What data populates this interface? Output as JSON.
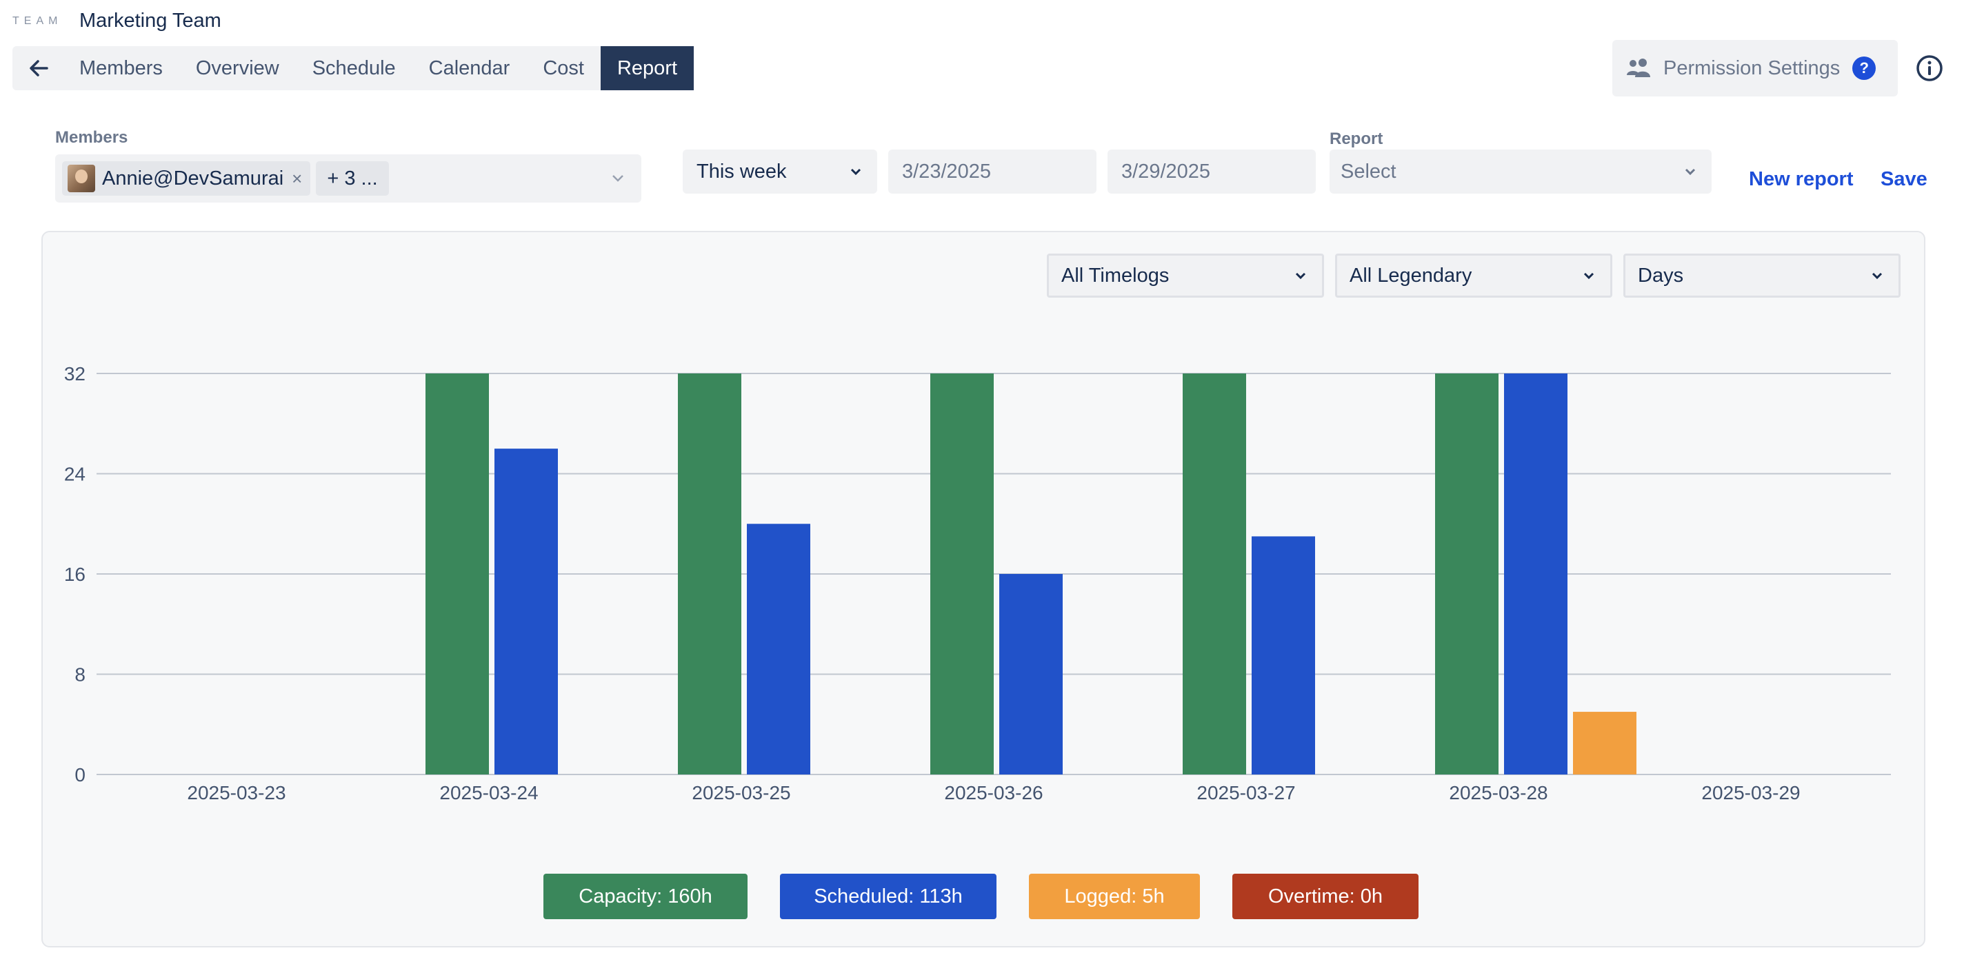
{
  "header": {
    "team_label": "TEAM",
    "team_name": "Marketing Team"
  },
  "nav": {
    "tabs": [
      {
        "label": "Members"
      },
      {
        "label": "Overview"
      },
      {
        "label": "Schedule"
      },
      {
        "label": "Calendar"
      },
      {
        "label": "Cost"
      },
      {
        "label": "Report",
        "active": true
      }
    ]
  },
  "permission": {
    "label": "Permission Settings",
    "help": "?"
  },
  "filters": {
    "members_label": "Members",
    "member_chip": "Annie@DevSamurai",
    "more_chip": "+ 3 ...",
    "period": "This week",
    "start_date": "3/23/2025",
    "end_date": "3/29/2025",
    "report_label": "Report",
    "report_placeholder": "Select",
    "new_report": "New report",
    "save": "Save"
  },
  "chart_filters": {
    "timelogs": "All Timelogs",
    "legendary": "All Legendary",
    "granularity": "Days"
  },
  "legend": [
    {
      "label": "Capacity:",
      "value": "160h",
      "color": "#3a875b"
    },
    {
      "label": "Scheduled:",
      "value": "113h",
      "color": "#2152c9"
    },
    {
      "label": "Logged:",
      "value": "5h",
      "color": "#f29f3f"
    },
    {
      "label": "Overtime:",
      "value": "0h",
      "color": "#b03a1f"
    }
  ],
  "chart_data": {
    "type": "bar",
    "categories": [
      "2025-03-23",
      "2025-03-24",
      "2025-03-25",
      "2025-03-26",
      "2025-03-27",
      "2025-03-28",
      "2025-03-29"
    ],
    "yticks": [
      0,
      8,
      16,
      24,
      32
    ],
    "ylim": [
      0,
      32
    ],
    "grid": true,
    "series": [
      {
        "name": "Capacity",
        "color": "#3a875b",
        "values": [
          0,
          32,
          32,
          32,
          32,
          32,
          0
        ]
      },
      {
        "name": "Scheduled",
        "color": "#2152c9",
        "values": [
          0,
          26,
          20,
          16,
          19,
          32,
          0
        ]
      },
      {
        "name": "Logged",
        "color": "#f29f3f",
        "values": [
          0,
          0,
          0,
          0,
          0,
          5,
          0
        ]
      },
      {
        "name": "Overtime",
        "color": "#b03a1f",
        "values": [
          0,
          0,
          0,
          0,
          0,
          0,
          0
        ]
      }
    ]
  }
}
